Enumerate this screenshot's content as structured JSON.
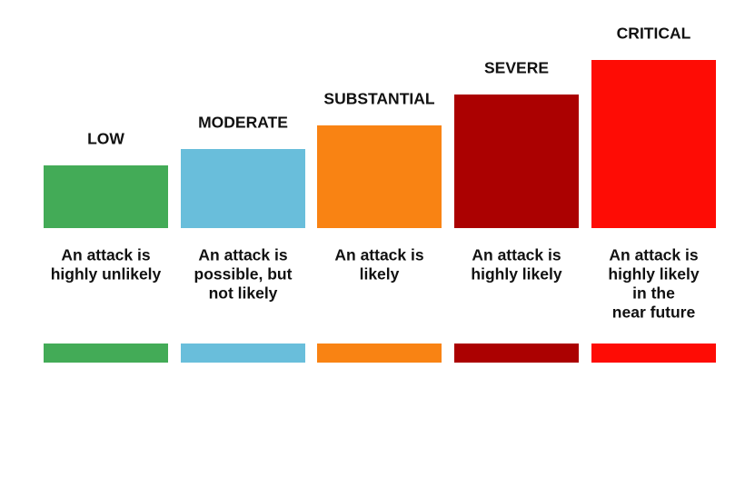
{
  "levels": [
    {
      "name": "LOW",
      "color": "#43ab57",
      "description": [
        "An attack is",
        "highly unlikely"
      ]
    },
    {
      "name": "MODERATE",
      "color": "#69bedb",
      "description": [
        "An attack is",
        "possible, but",
        "not likely"
      ]
    },
    {
      "name": "SUBSTANTIAL",
      "color": "#f98313",
      "description": [
        "An attack is",
        "likely"
      ]
    },
    {
      "name": "SEVERE",
      "color": "#ab0101",
      "description": [
        "An attack is",
        "highly likely"
      ]
    },
    {
      "name": "CRITICAL",
      "color": "#fe0c05",
      "description": [
        "An attack is",
        "highly likely",
        "in the",
        "near future"
      ]
    }
  ]
}
